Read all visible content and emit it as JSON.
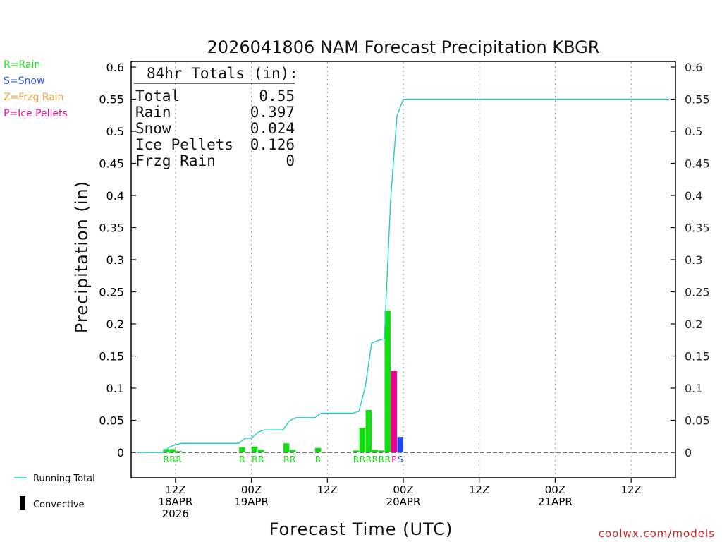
{
  "title": "2026041806 NAM Forecast Precipitation KBGR",
  "legend_top": [
    {
      "text": "R=Rain",
      "color": "#22dd22"
    },
    {
      "text": "S=Snow",
      "color": "#3355ee"
    },
    {
      "text": "Z=Frzg Rain",
      "color": "#f0a040"
    },
    {
      "text": "P=Ice Pellets",
      "color": "#ee1199"
    }
  ],
  "totals": {
    "header": "84hr Totals (in):",
    "rows": [
      {
        "label": "Total",
        "value": "0.55"
      },
      {
        "label": "Rain",
        "value": "0.397"
      },
      {
        "label": "Snow",
        "value": "0.024"
      },
      {
        "label": "Ice Pellets",
        "value": "0.126"
      },
      {
        "label": "Frzg Rain",
        "value": "0"
      }
    ]
  },
  "legend_bottom": {
    "running_total": "Running Total",
    "convective": "Convective"
  },
  "credit": "coolwx.com/models",
  "chart_data": {
    "type": "bar",
    "title": "2026041806 NAM Forecast Precipitation KBGR",
    "xlabel": "Forecast Time (UTC)",
    "ylabel": "Precipitation (in)",
    "ylim": [
      0,
      0.6
    ],
    "xlim_hours": [
      0,
      84
    ],
    "yticks": [
      "0",
      "0.05",
      "0.1",
      "0.15",
      "0.2",
      "0.25",
      "0.3",
      "0.35",
      "0.4",
      "0.45",
      "0.5",
      "0.55",
      "0.6"
    ],
    "xticks": [
      {
        "hour": 6,
        "lines": [
          "12Z",
          "18APR",
          "2026"
        ]
      },
      {
        "hour": 18,
        "lines": [
          "00Z",
          "19APR"
        ]
      },
      {
        "hour": 30,
        "lines": [
          "12Z"
        ]
      },
      {
        "hour": 42,
        "lines": [
          "00Z",
          "20APR"
        ]
      },
      {
        "hour": 54,
        "lines": [
          "12Z"
        ]
      },
      {
        "hour": 66,
        "lines": [
          "00Z",
          "21APR"
        ]
      },
      {
        "hour": 78,
        "lines": [
          "12Z"
        ]
      }
    ],
    "colors": {
      "R": "#11dd11",
      "S": "#2244ee",
      "P": "#ee0088",
      "line": "#22cccc"
    },
    "bars": [
      {
        "hour": 5,
        "value": 0.005,
        "type": "R"
      },
      {
        "hour": 6,
        "value": 0.005,
        "type": "R"
      },
      {
        "hour": 7,
        "value": 0.002,
        "type": "R"
      },
      {
        "hour": 17,
        "value": 0.008,
        "type": "R"
      },
      {
        "hour": 19,
        "value": 0.009,
        "type": "R"
      },
      {
        "hour": 20,
        "value": 0.004,
        "type": "R"
      },
      {
        "hour": 24,
        "value": 0.014,
        "type": "R"
      },
      {
        "hour": 25,
        "value": 0.004,
        "type": "R"
      },
      {
        "hour": 29,
        "value": 0.007,
        "type": "R"
      },
      {
        "hour": 35,
        "value": 0.003,
        "type": "R"
      },
      {
        "hour": 36,
        "value": 0.038,
        "type": "R"
      },
      {
        "hour": 37,
        "value": 0.066,
        "type": "R"
      },
      {
        "hour": 38,
        "value": 0.004,
        "type": "R"
      },
      {
        "hour": 39,
        "value": 0.003,
        "type": "R"
      },
      {
        "hour": 40,
        "value": 0.221,
        "type": "R"
      },
      {
        "hour": 41,
        "value": 0.127,
        "type": "P"
      },
      {
        "hour": 42,
        "value": 0.024,
        "type": "S"
      }
    ],
    "running_total": [
      [
        0,
        0
      ],
      [
        4,
        0
      ],
      [
        5,
        0.008
      ],
      [
        6,
        0.012
      ],
      [
        7,
        0.014
      ],
      [
        16,
        0.014
      ],
      [
        17,
        0.022
      ],
      [
        18,
        0.022
      ],
      [
        19,
        0.031
      ],
      [
        20,
        0.035
      ],
      [
        23,
        0.035
      ],
      [
        24,
        0.049
      ],
      [
        25,
        0.054
      ],
      [
        28,
        0.054
      ],
      [
        29,
        0.061
      ],
      [
        34,
        0.061
      ],
      [
        35,
        0.064
      ],
      [
        36,
        0.103
      ],
      [
        37,
        0.17
      ],
      [
        38,
        0.174
      ],
      [
        39,
        0.177
      ],
      [
        40,
        0.394
      ],
      [
        41,
        0.524
      ],
      [
        42,
        0.55
      ],
      [
        84,
        0.55
      ]
    ],
    "type_labels": [
      {
        "hour": 5,
        "text": "R",
        "type": "R"
      },
      {
        "hour": 6,
        "text": "R",
        "type": "R"
      },
      {
        "hour": 7,
        "text": "R",
        "type": "R"
      },
      {
        "hour": 17,
        "text": "R",
        "type": "R"
      },
      {
        "hour": 19,
        "text": "R",
        "type": "R"
      },
      {
        "hour": 20,
        "text": "R",
        "type": "R"
      },
      {
        "hour": 24,
        "text": "R",
        "type": "R"
      },
      {
        "hour": 25,
        "text": "R",
        "type": "R"
      },
      {
        "hour": 29,
        "text": "R",
        "type": "R"
      },
      {
        "hour": 35,
        "text": "R",
        "type": "R"
      },
      {
        "hour": 36,
        "text": "R",
        "type": "R"
      },
      {
        "hour": 37,
        "text": "R",
        "type": "R"
      },
      {
        "hour": 38,
        "text": "R",
        "type": "R"
      },
      {
        "hour": 39,
        "text": "R",
        "type": "R"
      },
      {
        "hour": 40,
        "text": "R",
        "type": "R"
      },
      {
        "hour": 41,
        "text": "P",
        "type": "P"
      },
      {
        "hour": 42,
        "text": "S",
        "type": "S"
      }
    ]
  }
}
